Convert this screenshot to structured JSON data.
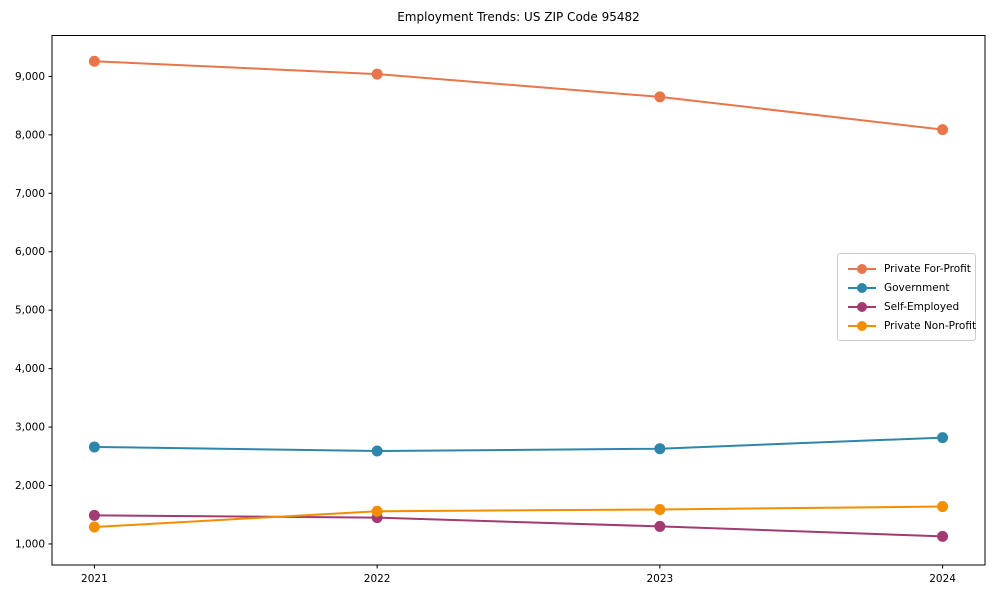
{
  "chart_data": {
    "type": "line",
    "title": "Employment Trends: US ZIP Code 95482",
    "xlabel": "",
    "ylabel": "",
    "x": [
      2021,
      2022,
      2023,
      2024
    ],
    "x_tick_labels": [
      "2021",
      "2022",
      "2023",
      "2024"
    ],
    "yticks": [
      1000,
      2000,
      3000,
      4000,
      5000,
      6000,
      7000,
      8000,
      9000
    ],
    "ytick_labels": [
      "1,000",
      "2,000",
      "3,000",
      "4,000",
      "5,000",
      "6,000",
      "7,000",
      "8,000",
      "9,000"
    ],
    "xlim": [
      2020.85,
      2024.15
    ],
    "ylim": [
      640,
      9700
    ],
    "grid": false,
    "legend_position": "center right",
    "series": [
      {
        "name": "Private For-Profit",
        "color": "#E8764B",
        "values": [
          9260,
          9040,
          8650,
          8090
        ]
      },
      {
        "name": "Government",
        "color": "#2E86AB",
        "values": [
          2660,
          2590,
          2630,
          2820
        ]
      },
      {
        "name": "Self-Employed",
        "color": "#A23B72",
        "values": [
          1490,
          1450,
          1300,
          1130
        ]
      },
      {
        "name": "Private Non-Profit",
        "color": "#F18F01",
        "values": [
          1290,
          1560,
          1590,
          1640
        ]
      }
    ]
  }
}
